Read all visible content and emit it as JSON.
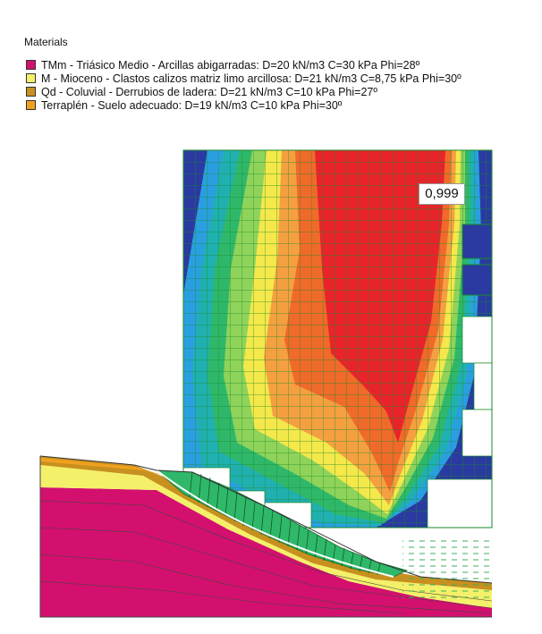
{
  "legend": {
    "title": "Materials",
    "items": [
      {
        "label": "TMm - Triásico Medio - Arcillas abigarradas: D=20 kN/m3 C=30 kPa Phi=28º",
        "color": "#d3106e"
      },
      {
        "label": "M - Mioceno -  Clastos calizos matriz limo arcillosa: D=21 kN/m3 C=8,75 kPa Phi=30º",
        "color": "#f4f06a"
      },
      {
        "label": "Qd - Coluvial - Derrubios de ladera: D=21 kN/m3 C=10 kPa Phi=27º",
        "color": "#c8901e"
      },
      {
        "label": "Terraplén - Suelo adecuado: D=19 kN/m3 C=10 kPa Phi=30º",
        "color": "#f0a020"
      }
    ]
  },
  "factor_of_safety_label": "0,999",
  "contour_colors": [
    "#e8242a",
    "#f06a2a",
    "#f5a040",
    "#f4e84a",
    "#8fd35a",
    "#2fb86a",
    "#20b0b0",
    "#2a9fe0",
    "#2a3aa0"
  ]
}
